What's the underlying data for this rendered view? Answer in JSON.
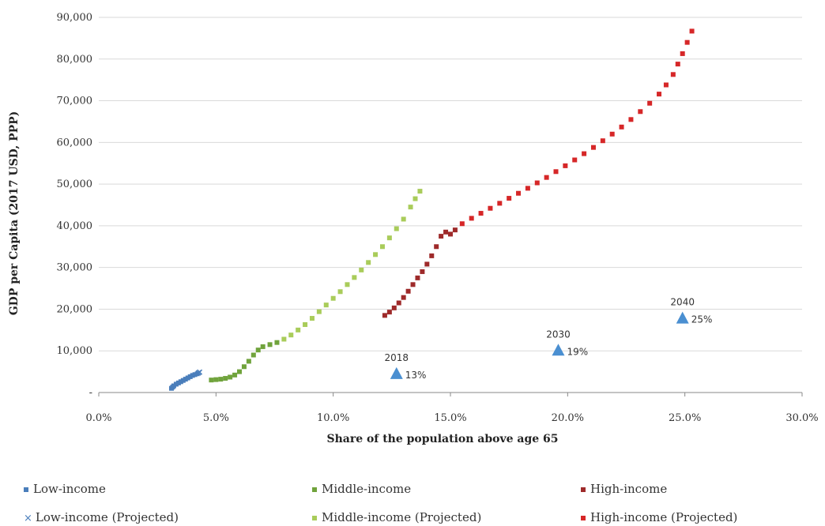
{
  "chart_data": {
    "type": "scatter",
    "xlabel": "Share of  the population above age 65",
    "ylabel": "GDP per Capita (2017 USD, PPP)",
    "xlim": [
      0,
      30
    ],
    "ylim": [
      0,
      90000
    ],
    "x_ticks": [
      "0.0%",
      "5.0%",
      "10.0%",
      "15.0%",
      "20.0%",
      "25.0%",
      "30.0%"
    ],
    "y_ticks": [
      "-",
      "10,000",
      "20,000",
      "30,000",
      "40,000",
      "50,000",
      "60,000",
      "70,000",
      "80,000",
      "90,000"
    ],
    "grid": "horizontal",
    "legend_position": "bottom",
    "series": [
      {
        "name": "Low-income",
        "color": "#4a7ebb",
        "marker": "square",
        "points": [
          [
            3.1,
            1000
          ],
          [
            3.15,
            1300
          ],
          [
            3.2,
            1600
          ],
          [
            3.3,
            2000
          ],
          [
            3.4,
            2300
          ],
          [
            3.5,
            2600
          ],
          [
            3.6,
            2900
          ],
          [
            3.7,
            3200
          ],
          [
            3.8,
            3500
          ],
          [
            3.9,
            3800
          ],
          [
            4.0,
            4100
          ],
          [
            4.1,
            4300
          ],
          [
            4.2,
            4500
          ]
        ]
      },
      {
        "name": "Low-income (Projected)",
        "color": "#4a7ebb",
        "marker": "x",
        "points": [
          [
            4.25,
            4700
          ],
          [
            4.3,
            4900
          ]
        ]
      },
      {
        "name": "Middle-income",
        "color": "#70a33c",
        "marker": "square",
        "points": [
          [
            4.8,
            3000
          ],
          [
            5.0,
            3100
          ],
          [
            5.2,
            3200
          ],
          [
            5.4,
            3400
          ],
          [
            5.6,
            3700
          ],
          [
            5.8,
            4200
          ],
          [
            6.0,
            5000
          ],
          [
            6.2,
            6200
          ],
          [
            6.4,
            7500
          ],
          [
            6.6,
            9000
          ],
          [
            6.8,
            10200
          ],
          [
            7.0,
            11000
          ],
          [
            7.3,
            11500
          ],
          [
            7.6,
            12000
          ]
        ]
      },
      {
        "name": "Middle-income (Projected)",
        "color": "#a9cc5a",
        "marker": "square",
        "points": [
          [
            7.9,
            12800
          ],
          [
            8.2,
            13800
          ],
          [
            8.5,
            15000
          ],
          [
            8.8,
            16300
          ],
          [
            9.1,
            17800
          ],
          [
            9.4,
            19400
          ],
          [
            9.7,
            21000
          ],
          [
            10.0,
            22600
          ],
          [
            10.3,
            24200
          ],
          [
            10.6,
            25900
          ],
          [
            10.9,
            27600
          ],
          [
            11.2,
            29400
          ],
          [
            11.5,
            31200
          ],
          [
            11.8,
            33100
          ],
          [
            12.1,
            35000
          ],
          [
            12.4,
            37100
          ],
          [
            12.7,
            39300
          ],
          [
            13.0,
            41600
          ],
          [
            13.3,
            44500
          ],
          [
            13.5,
            46500
          ],
          [
            13.7,
            48300
          ]
        ]
      },
      {
        "name": "High-income",
        "color": "#9e2a2a",
        "marker": "square",
        "points": [
          [
            12.2,
            18500
          ],
          [
            12.4,
            19300
          ],
          [
            12.6,
            20300
          ],
          [
            12.8,
            21500
          ],
          [
            13.0,
            22800
          ],
          [
            13.2,
            24300
          ],
          [
            13.4,
            25900
          ],
          [
            13.6,
            27500
          ],
          [
            13.8,
            29000
          ],
          [
            14.0,
            30800
          ],
          [
            14.2,
            32800
          ],
          [
            14.4,
            35000
          ],
          [
            14.6,
            37500
          ],
          [
            14.8,
            38500
          ],
          [
            15.0,
            38000
          ],
          [
            15.2,
            39000
          ]
        ]
      },
      {
        "name": "High-income (Projected)",
        "color": "#d62728",
        "marker": "square",
        "points": [
          [
            15.5,
            40500
          ],
          [
            15.9,
            41800
          ],
          [
            16.3,
            43000
          ],
          [
            16.7,
            44200
          ],
          [
            17.1,
            45400
          ],
          [
            17.5,
            46600
          ],
          [
            17.9,
            47800
          ],
          [
            18.3,
            49000
          ],
          [
            18.7,
            50300
          ],
          [
            19.1,
            51600
          ],
          [
            19.5,
            53000
          ],
          [
            19.9,
            54400
          ],
          [
            20.3,
            55800
          ],
          [
            20.7,
            57300
          ],
          [
            21.1,
            58800
          ],
          [
            21.5,
            60400
          ],
          [
            21.9,
            62000
          ],
          [
            22.3,
            63700
          ],
          [
            22.7,
            65500
          ],
          [
            23.1,
            67400
          ],
          [
            23.5,
            69400
          ],
          [
            23.9,
            71600
          ],
          [
            24.2,
            73800
          ],
          [
            24.5,
            76300
          ],
          [
            24.7,
            78800
          ],
          [
            24.9,
            81300
          ],
          [
            25.1,
            84000
          ],
          [
            25.3,
            86700
          ]
        ]
      }
    ],
    "annotations": [
      {
        "year": "2018",
        "x": 12.7,
        "y": 4200,
        "label": "13%"
      },
      {
        "year": "2030",
        "x": 19.6,
        "y": 9800,
        "label": "19%"
      },
      {
        "year": "2040",
        "x": 24.9,
        "y": 17500,
        "label": "25%"
      }
    ],
    "annotation_color": "#4a8fd1"
  },
  "legend": [
    {
      "label": "Low-income",
      "color": "#4a7ebb",
      "marker": "square"
    },
    {
      "label": "Middle-income",
      "color": "#70a33c",
      "marker": "square"
    },
    {
      "label": "High-income",
      "color": "#9e2a2a",
      "marker": "square"
    },
    {
      "label": "Low-income (Projected)",
      "color": "#4a7ebb",
      "marker": "x"
    },
    {
      "label": "Middle-income (Projected)",
      "color": "#a9cc5a",
      "marker": "square"
    },
    {
      "label": "High-income (Projected)",
      "color": "#d62728",
      "marker": "square"
    }
  ]
}
